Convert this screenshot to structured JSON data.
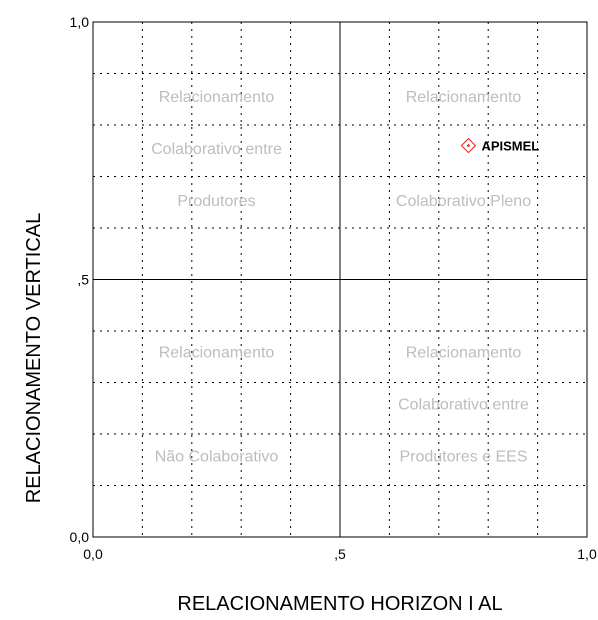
{
  "chart_data": {
    "type": "scatter",
    "title": "",
    "xlabel": "RELACIONAMENTO HORIZON I AL",
    "ylabel": "RELACIONAMENTO VERTICAL",
    "xlim": [
      0,
      1
    ],
    "ylim": [
      0,
      1
    ],
    "grid": true,
    "x_ticks": [
      {
        "value": 0,
        "label": "0,0"
      },
      {
        "value": 0.5,
        "label": ",5"
      },
      {
        "value": 1,
        "label": "1,0"
      }
    ],
    "y_ticks": [
      {
        "value": 0,
        "label": "0,0"
      },
      {
        "value": 0.5,
        "label": ",5"
      },
      {
        "value": 1,
        "label": "1,0"
      }
    ],
    "points": [
      {
        "label": "APISMEL",
        "x": 0.76,
        "y": 0.76,
        "color": "#e02020"
      }
    ],
    "quadrant_labels": [
      {
        "name": "top-left",
        "lines": [
          "Relacionamento",
          "Colaborativo entre",
          "Produtores"
        ]
      },
      {
        "name": "top-right",
        "lines": [
          "Relacionamento",
          "",
          "Colaborativo Pleno"
        ]
      },
      {
        "name": "bottom-left",
        "lines": [
          "Relacionamento",
          "",
          "Não Colaborativo"
        ]
      },
      {
        "name": "bottom-right",
        "lines": [
          "Relacionamento",
          "Colaborativo entre",
          "Produtores e EES"
        ]
      }
    ]
  }
}
